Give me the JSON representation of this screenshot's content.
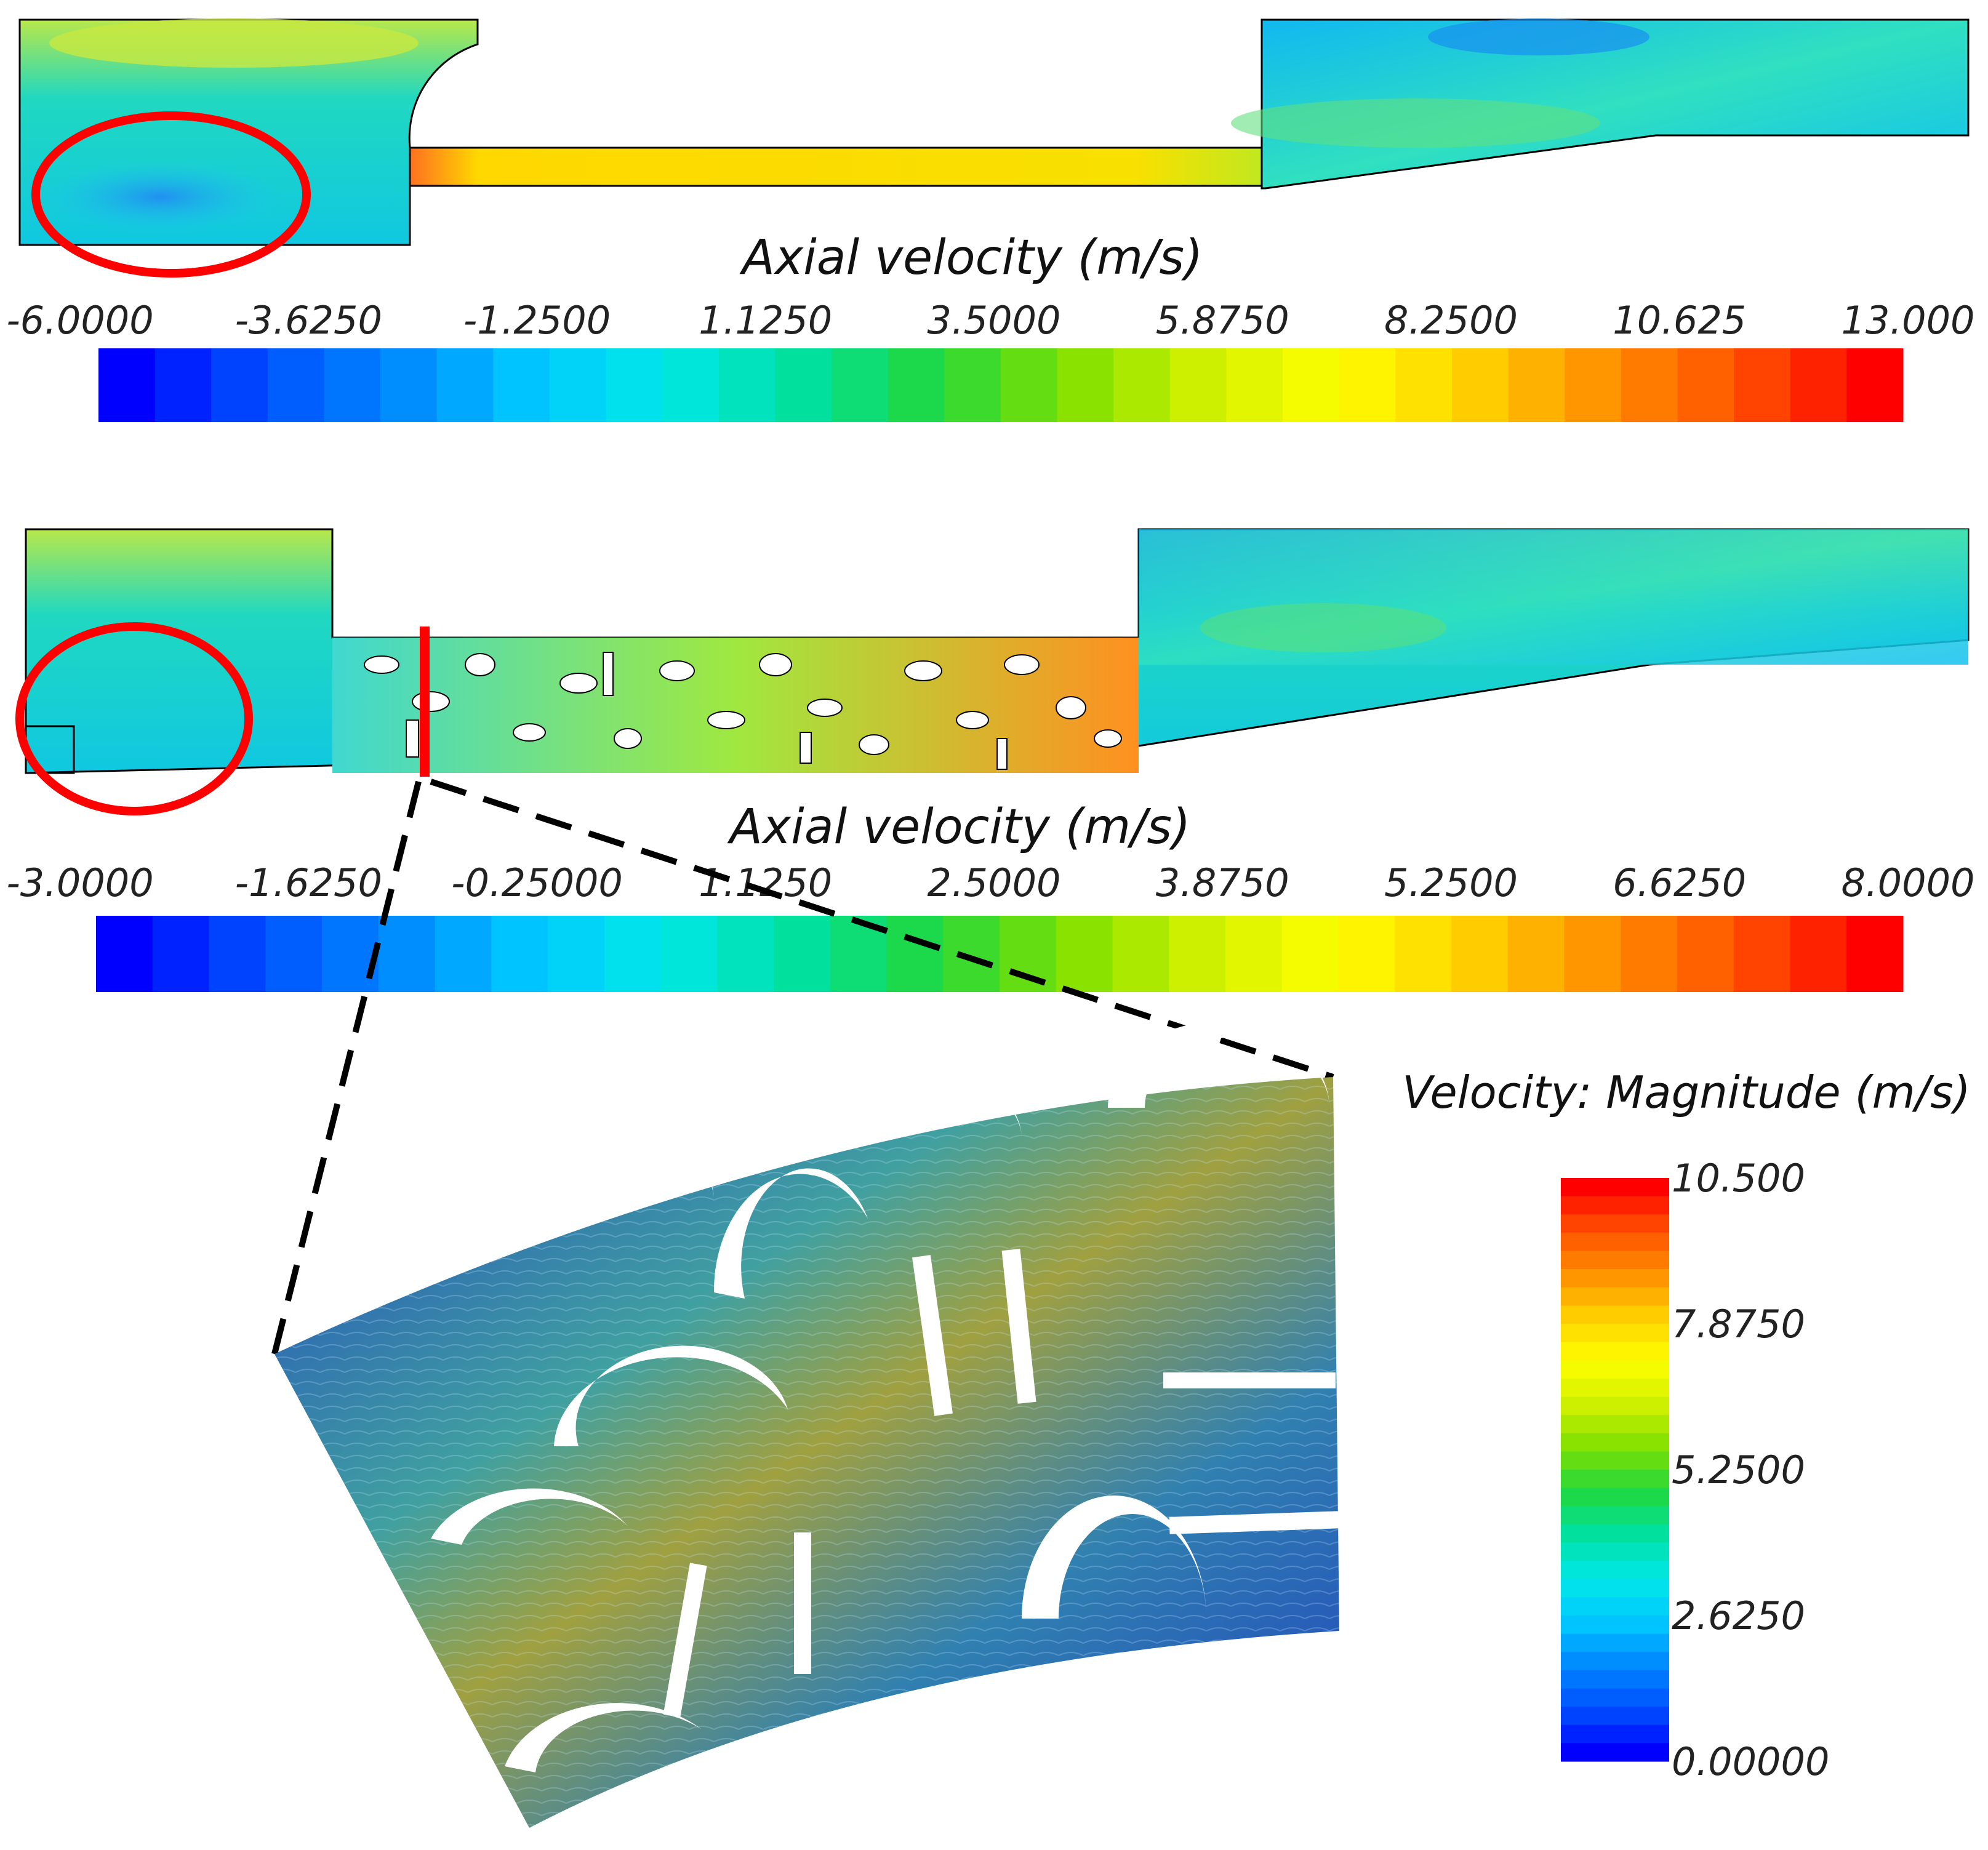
{
  "panels": [
    {
      "legend_title": "Axial velocity (m/s)",
      "tick_labels": [
        "-6.0000",
        "-3.6250",
        "-1.2500",
        "1.1250",
        "3.5000",
        "5.8750",
        "8.2500",
        "10.625",
        "13.000"
      ],
      "range": [
        -6.0,
        13.0
      ]
    },
    {
      "legend_title": "Axial velocity (m/s)",
      "tick_labels": [
        "-3.0000",
        "-1.6250",
        "-0.25000",
        "1.1250",
        "2.5000",
        "3.8750",
        "5.2500",
        "6.6250",
        "8.0000"
      ],
      "range": [
        -3.0,
        8.0
      ]
    }
  ],
  "detail": {
    "legend_title": "Velocity: Magnitude (m/s)",
    "tick_labels": [
      "10.500",
      "7.8750",
      "5.2500",
      "2.6250",
      "0.00000"
    ],
    "range": [
      0.0,
      10.5
    ]
  },
  "colormap": [
    "#0000ff",
    "#0050ff",
    "#0088ff",
    "#00c8ff",
    "#00e8e8",
    "#00e0a0",
    "#20d840",
    "#80e000",
    "#d0f000",
    "#ffff00",
    "#ffd000",
    "#ff9000",
    "#ff5000",
    "#ff0000"
  ],
  "colors": {
    "highlight": "#ff0000",
    "guide": "#000000"
  }
}
